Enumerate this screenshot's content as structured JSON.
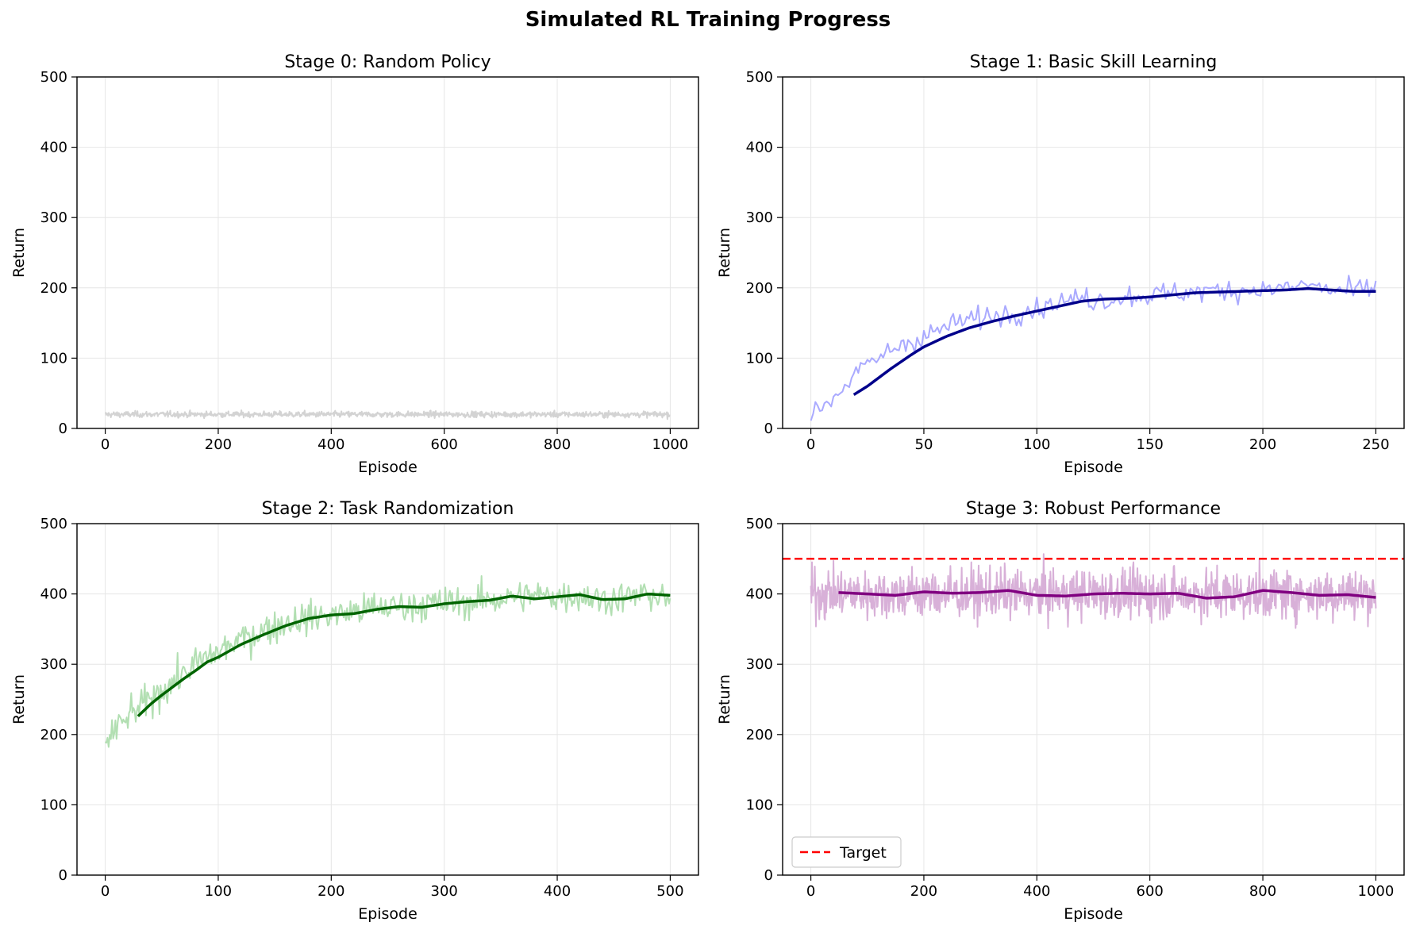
{
  "figure": {
    "suptitle": "Simulated RL Training Progress"
  },
  "chart_data": [
    {
      "type": "line",
      "title": "Stage 0: Random Policy",
      "xlabel": "Episode",
      "ylabel": "Return",
      "xlim": [
        -50,
        1050
      ],
      "ylim": [
        0,
        500
      ],
      "xticks": [
        0,
        200,
        400,
        600,
        800,
        1000
      ],
      "yticks": [
        0,
        100,
        200,
        300,
        400,
        500
      ],
      "grid": true,
      "series": [
        {
          "role": "raw",
          "color": "#d3d3d3",
          "episodes": [
            0,
            1000
          ],
          "approx_level": 20,
          "noise": 3
        }
      ]
    },
    {
      "type": "line",
      "title": "Stage 1: Basic Skill Learning",
      "xlabel": "Episode",
      "ylabel": "Return",
      "xlim": [
        -12.5,
        262.5
      ],
      "ylim": [
        0,
        500
      ],
      "xticks": [
        0,
        50,
        100,
        150,
        200,
        250
      ],
      "yticks": [
        0,
        100,
        200,
        300,
        400,
        500
      ],
      "grid": true,
      "series": [
        {
          "role": "raw",
          "color": "#aaaaff",
          "x": [
            0,
            10,
            20,
            30,
            40,
            50,
            60,
            70,
            80,
            90,
            100,
            110,
            120,
            130,
            140,
            150,
            160,
            170,
            180,
            190,
            200,
            210,
            220,
            230,
            240,
            250
          ],
          "y": [
            18,
            45,
            78,
            100,
            120,
            130,
            145,
            155,
            160,
            165,
            172,
            180,
            185,
            183,
            188,
            190,
            192,
            195,
            196,
            197,
            198,
            199,
            205,
            196,
            195,
            200
          ]
        },
        {
          "role": "smoothed",
          "color": "#00008b",
          "x": [
            19,
            25,
            30,
            35,
            40,
            45,
            50,
            60,
            70,
            80,
            90,
            100,
            110,
            120,
            130,
            140,
            150,
            160,
            170,
            180,
            190,
            200,
            210,
            220,
            230,
            240,
            250
          ],
          "y": [
            48,
            60,
            72,
            84,
            95,
            106,
            116,
            131,
            143,
            152,
            160,
            167,
            174,
            181,
            184,
            185,
            187,
            190,
            193,
            194,
            195,
            196,
            197,
            199,
            197,
            195,
            195
          ]
        }
      ]
    },
    {
      "type": "line",
      "title": "Stage 2: Task Randomization",
      "xlabel": "Episode",
      "ylabel": "Return",
      "xlim": [
        -25,
        525
      ],
      "ylim": [
        0,
        500
      ],
      "xticks": [
        0,
        100,
        200,
        300,
        400,
        500
      ],
      "yticks": [
        0,
        100,
        200,
        300,
        400,
        500
      ],
      "grid": true,
      "series": [
        {
          "role": "raw",
          "color": "#b2dfb2",
          "x": [
            0,
            20,
            40,
            60,
            80,
            100,
            120,
            140,
            160,
            180,
            200,
            220,
            240,
            260,
            280,
            300,
            320,
            340,
            360,
            380,
            400,
            420,
            440,
            460,
            480,
            500
          ],
          "y": [
            190,
            225,
            250,
            275,
            300,
            318,
            335,
            348,
            360,
            366,
            370,
            375,
            380,
            382,
            385,
            387,
            388,
            392,
            395,
            398,
            397,
            398,
            392,
            395,
            400,
            390
          ]
        },
        {
          "role": "smoothed",
          "color": "#006400",
          "x": [
            29,
            40,
            50,
            60,
            70,
            80,
            90,
            100,
            120,
            140,
            160,
            180,
            200,
            220,
            240,
            260,
            280,
            300,
            320,
            340,
            360,
            380,
            400,
            420,
            440,
            460,
            480,
            500
          ],
          "y": [
            226,
            243,
            256,
            268,
            280,
            291,
            303,
            310,
            328,
            342,
            355,
            365,
            370,
            372,
            378,
            382,
            381,
            386,
            389,
            391,
            397,
            393,
            396,
            399,
            392,
            393,
            400,
            398
          ]
        }
      ]
    },
    {
      "type": "line",
      "title": "Stage 3: Robust Performance",
      "xlabel": "Episode",
      "ylabel": "Return",
      "xlim": [
        -50,
        1050
      ],
      "ylim": [
        0,
        500
      ],
      "xticks": [
        0,
        200,
        400,
        600,
        800,
        1000
      ],
      "yticks": [
        0,
        100,
        200,
        300,
        400,
        500
      ],
      "grid": true,
      "legend": {
        "position": "lower-left",
        "entries": [
          "Target"
        ]
      },
      "target": {
        "y": 450,
        "color": "#ff0000",
        "label": "Target"
      },
      "series": [
        {
          "role": "raw",
          "color": "#d8b0d8",
          "episodes": [
            0,
            1000
          ],
          "approx_level": 400,
          "noise": 25
        },
        {
          "role": "smoothed",
          "color": "#800080",
          "x": [
            49,
            100,
            150,
            200,
            250,
            300,
            350,
            400,
            450,
            500,
            550,
            600,
            650,
            700,
            750,
            800,
            850,
            900,
            950,
            1000
          ],
          "y": [
            402,
            400,
            398,
            403,
            401,
            402,
            405,
            398,
            397,
            400,
            401,
            400,
            401,
            394,
            396,
            405,
            402,
            398,
            399,
            395
          ]
        }
      ]
    }
  ]
}
